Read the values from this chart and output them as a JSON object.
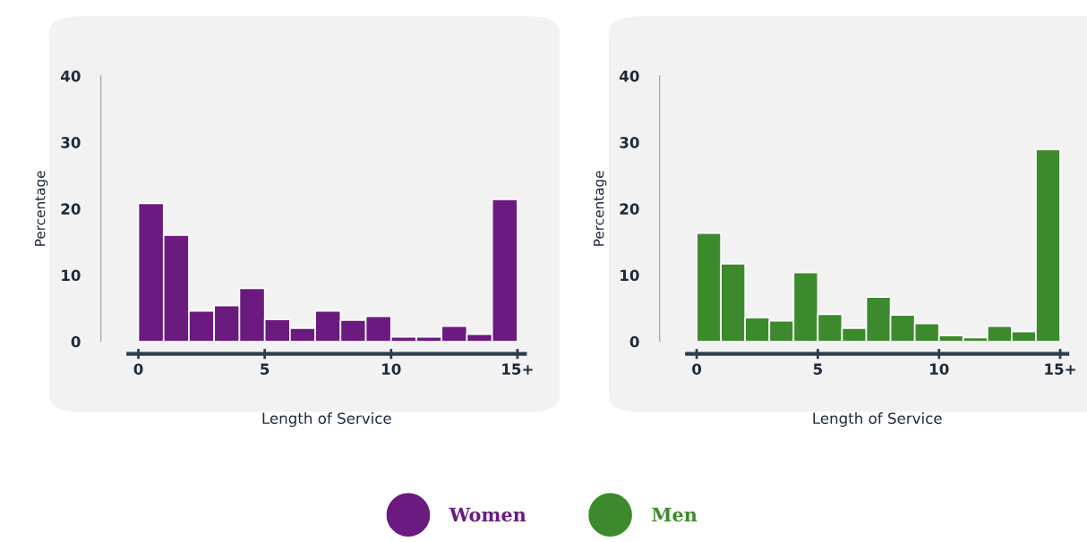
{
  "chart_data": [
    {
      "type": "histogram",
      "xlabel": "Length of Service",
      "ylabel": "Percentage",
      "bins": [
        0,
        1,
        2,
        3,
        4,
        5,
        6,
        7,
        8,
        9,
        10,
        11,
        12,
        13,
        14,
        15
      ],
      "series": [
        {
          "name": "Women",
          "color": "#6b1a80",
          "values": [
            20.8,
            16.0,
            4.6,
            5.4,
            8.0,
            3.3,
            2.0,
            4.6,
            3.2,
            3.8,
            0.7,
            0.7,
            2.3,
            1.1,
            21.4
          ]
        }
      ],
      "xlim": [
        -0.4,
        15.3
      ],
      "ylim": [
        0,
        40
      ],
      "xticks": [
        0,
        5,
        10,
        {
          "value": 15,
          "label": "15+"
        }
      ],
      "yticks": [
        0,
        10,
        20,
        30,
        40
      ],
      "grid": false,
      "legend": "bottom"
    },
    {
      "type": "histogram",
      "xlabel": "Length of Service",
      "ylabel": "Percentage",
      "bins": [
        0,
        1,
        2,
        3,
        4,
        5,
        6,
        7,
        8,
        9,
        10,
        11,
        12,
        13,
        14,
        15
      ],
      "series": [
        {
          "name": "Men",
          "color": "#3d8a2e",
          "values": [
            16.3,
            11.7,
            3.6,
            3.1,
            10.4,
            4.1,
            2.0,
            6.7,
            4.0,
            2.7,
            0.9,
            0.6,
            2.3,
            1.5,
            28.9
          ]
        }
      ],
      "xlim": [
        -0.4,
        15.3
      ],
      "ylim": [
        0,
        40
      ],
      "xticks": [
        0,
        5,
        10,
        {
          "value": 15,
          "label": "15+"
        }
      ],
      "yticks": [
        0,
        10,
        20,
        30,
        40
      ],
      "grid": false,
      "legend": "bottom"
    }
  ]
}
